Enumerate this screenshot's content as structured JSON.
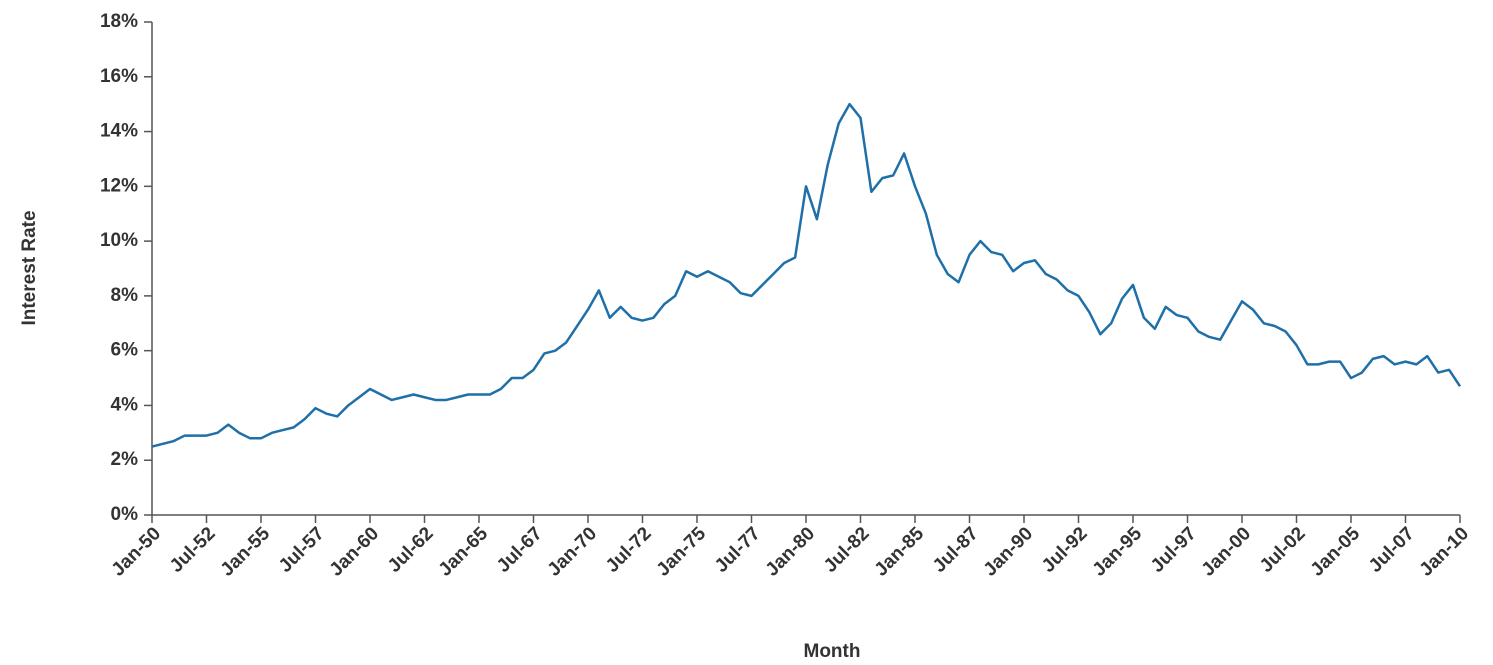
{
  "chart_data": {
    "type": "line",
    "x_label": "Month",
    "y_label": "Interest Rate",
    "color": "#1f6fa8",
    "x": [
      "Jan-50",
      "Jul-50",
      "Jan-51",
      "Jul-51",
      "Jan-52",
      "Jul-52",
      "Jan-53",
      "Jul-53",
      "Jan-54",
      "Jul-54",
      "Jan-55",
      "Jul-55",
      "Jan-56",
      "Jul-56",
      "Jan-57",
      "Jul-57",
      "Jan-58",
      "Jul-58",
      "Jan-59",
      "Jul-59",
      "Jan-60",
      "Jul-60",
      "Jan-61",
      "Jul-61",
      "Jan-62",
      "Jul-62",
      "Jan-63",
      "Jul-63",
      "Jan-64",
      "Jul-64",
      "Jan-65",
      "Jul-65",
      "Jan-66",
      "Jul-66",
      "Jan-67",
      "Jul-67",
      "Jan-68",
      "Jul-68",
      "Jan-69",
      "Jul-69",
      "Jan-70",
      "Jul-70",
      "Jan-71",
      "Jul-71",
      "Jan-72",
      "Jul-72",
      "Jan-73",
      "Jul-73",
      "Jan-74",
      "Jul-74",
      "Jan-75",
      "Jul-75",
      "Jan-76",
      "Jul-76",
      "Jan-77",
      "Jul-77",
      "Jan-78",
      "Jul-78",
      "Jan-79",
      "Jul-79",
      "Jan-80",
      "Jul-80",
      "Jan-81",
      "Jul-81",
      "Jan-82",
      "Jul-82",
      "Jan-83",
      "Jul-83",
      "Jan-84",
      "Jul-84",
      "Jan-85",
      "Jul-85",
      "Jan-86",
      "Jul-86",
      "Jan-87",
      "Jul-87",
      "Jan-88",
      "Jul-88",
      "Jan-89",
      "Jul-89",
      "Jan-90",
      "Jul-90",
      "Jan-91",
      "Jul-91",
      "Jan-92",
      "Jul-92",
      "Jan-93",
      "Jul-93",
      "Jan-94",
      "Jul-94",
      "Jan-95",
      "Jul-95",
      "Jan-96",
      "Jul-96",
      "Jan-97",
      "Jul-97",
      "Jan-98",
      "Jul-98",
      "Jan-99",
      "Jul-99",
      "Jan-00",
      "Jul-00",
      "Jan-01",
      "Jul-01",
      "Jan-02",
      "Jul-02",
      "Jan-03",
      "Jul-03",
      "Jan-04",
      "Jul-04",
      "Jan-05",
      "Jul-05",
      "Jan-06",
      "Jul-06",
      "Jan-07",
      "Jul-07",
      "Jan-08",
      "Jul-08",
      "Jan-09",
      "Jul-09",
      "Jan-10"
    ],
    "values": [
      2.5,
      2.6,
      2.7,
      2.9,
      2.9,
      2.9,
      3.0,
      3.3,
      3.0,
      2.8,
      2.8,
      3.0,
      3.1,
      3.2,
      3.5,
      3.9,
      3.7,
      3.6,
      4.0,
      4.3,
      4.6,
      4.4,
      4.2,
      4.3,
      4.4,
      4.3,
      4.2,
      4.2,
      4.3,
      4.4,
      4.4,
      4.4,
      4.6,
      5.0,
      5.0,
      5.3,
      5.9,
      6.0,
      6.3,
      6.9,
      7.5,
      8.2,
      7.2,
      7.6,
      7.2,
      7.1,
      7.2,
      7.7,
      8.0,
      8.9,
      8.7,
      8.9,
      8.7,
      8.5,
      8.1,
      8.0,
      8.4,
      8.8,
      9.2,
      9.4,
      12.0,
      10.8,
      12.8,
      14.3,
      15.0,
      14.5,
      11.8,
      12.3,
      12.4,
      13.2,
      12.0,
      11.0,
      9.5,
      8.8,
      8.5,
      9.5,
      10.0,
      9.6,
      9.5,
      8.9,
      9.2,
      9.3,
      8.8,
      8.6,
      8.2,
      8.0,
      7.4,
      6.6,
      7.0,
      7.9,
      8.4,
      7.2,
      6.8,
      7.6,
      7.3,
      7.2,
      6.7,
      6.5,
      6.4,
      7.1,
      7.8,
      7.5,
      7.0,
      6.9,
      6.7,
      6.2,
      5.5,
      5.5,
      5.6,
      5.6,
      5.0,
      5.2,
      5.7,
      5.8,
      5.5,
      5.6,
      5.5,
      5.8,
      5.2,
      5.3,
      4.7
    ],
    "xticks": [
      "Jan-50",
      "Jul-52",
      "Jan-55",
      "Jul-57",
      "Jan-60",
      "Jul-62",
      "Jan-65",
      "Jul-67",
      "Jan-70",
      "Jul-72",
      "Jan-75",
      "Jul-77",
      "Jan-80",
      "Jul-82",
      "Jan-85",
      "Jul-87",
      "Jan-90",
      "Jul-92",
      "Jan-95",
      "Jul-97",
      "Jan-00",
      "Jul-02",
      "Jan-05",
      "Jul-07",
      "Jan-10"
    ],
    "ylim": [
      0,
      18
    ],
    "yticks": [
      {
        "value": 0,
        "label": "0%"
      },
      {
        "value": 2,
        "label": "2%"
      },
      {
        "value": 4,
        "label": "4%"
      },
      {
        "value": 6,
        "label": "6%"
      },
      {
        "value": 8,
        "label": "8%"
      },
      {
        "value": 10,
        "label": "10%"
      },
      {
        "value": 12,
        "label": "12%"
      },
      {
        "value": 14,
        "label": "14%"
      },
      {
        "value": 16,
        "label": "16%"
      },
      {
        "value": 18,
        "label": "18%"
      }
    ]
  }
}
